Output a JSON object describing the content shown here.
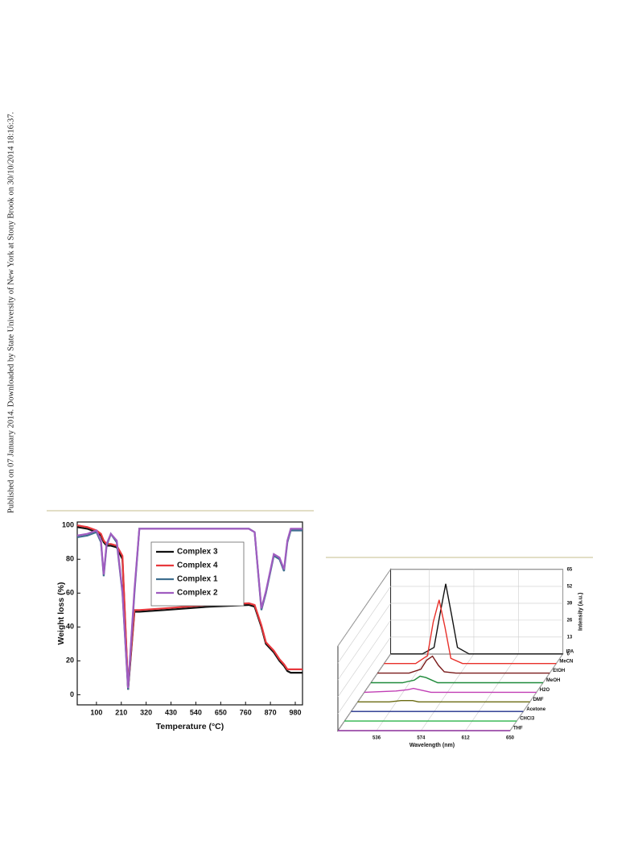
{
  "sidebar": "Published on 07 January 2014. Downloaded by State University of New York at Stony Brook on 30/10/2014 18:16:37.",
  "chart_data": [
    {
      "type": "line",
      "xlabel": "Temperature (°C)",
      "ylabel": "Weight loss (%)",
      "xlim": [
        15,
        1012
      ],
      "ylim": [
        -6,
        102
      ],
      "xticks": [
        100,
        210,
        320,
        430,
        540,
        650,
        760,
        870,
        980
      ],
      "yticks": [
        0,
        20,
        40,
        60,
        80,
        100
      ],
      "legend": "upper center",
      "x": [
        15,
        60,
        100,
        120,
        132,
        145,
        164,
        190,
        215,
        240,
        268,
        290,
        400,
        600,
        775,
        800,
        830,
        850,
        885,
        910,
        930,
        945,
        960,
        1012
      ],
      "series": [
        {
          "name": "Complex 3",
          "color": "#111111",
          "values": [
            99,
            98,
            96,
            94,
            90,
            88,
            88,
            87,
            80,
            3,
            49,
            49,
            50,
            52,
            53,
            52,
            40,
            30,
            25,
            20,
            17,
            14,
            13,
            13
          ]
        },
        {
          "name": "Complex 4",
          "color": "#e8383d",
          "values": [
            100,
            99,
            97,
            95,
            91,
            89,
            89,
            88,
            82,
            4,
            50,
            50,
            51,
            53,
            54,
            53,
            41,
            31,
            26,
            21,
            18,
            15,
            15,
            15
          ]
        },
        {
          "name": "Complex 1",
          "color": "#3f6f8f",
          "values": [
            93,
            94,
            96,
            90,
            70,
            88,
            95,
            90,
            60,
            3,
            60,
            98,
            98,
            98,
            98,
            96,
            50,
            60,
            82,
            80,
            73,
            90,
            97,
            97
          ]
        },
        {
          "name": "Complex 2",
          "color": "#a05cc0",
          "values": [
            94,
            95,
            97,
            91,
            71,
            89,
            95,
            91,
            61,
            4,
            62,
            98,
            98,
            98,
            98,
            96,
            51,
            61,
            83,
            81,
            74,
            91,
            98,
            98
          ]
        }
      ]
    },
    {
      "type": "waterfall",
      "xlabel": "Wavelength (nm)",
      "zlabel": "Intensity (a.u.)",
      "xlim": [
        503,
        650
      ],
      "zlim": [
        0,
        65
      ],
      "xticks": [
        536,
        574,
        612,
        650
      ],
      "zticks": [
        0,
        13,
        26,
        39,
        52,
        65
      ],
      "x": [
        503,
        530,
        540,
        545,
        550,
        555,
        560,
        570,
        600,
        650
      ],
      "series": [
        {
          "name": "THF",
          "color": "#8a2f9a",
          "values": [
            0,
            0,
            0,
            0,
            0,
            0,
            0,
            0,
            0,
            0
          ]
        },
        {
          "name": "CHCl3",
          "color": "#2bb34a",
          "values": [
            0,
            0,
            0,
            0,
            0,
            0,
            0,
            0,
            0,
            0
          ]
        },
        {
          "name": "Acetone",
          "color": "#1f2f8a",
          "values": [
            0,
            0,
            0,
            0,
            0,
            0,
            0,
            0,
            0,
            0
          ]
        },
        {
          "name": "DMF",
          "color": "#6b6b12",
          "values": [
            0,
            0,
            1,
            1,
            1,
            0,
            0,
            0,
            0,
            0
          ]
        },
        {
          "name": "H2O",
          "color": "#c13fb5",
          "values": [
            0,
            1,
            2,
            3,
            2,
            1,
            0,
            0,
            0,
            0
          ]
        },
        {
          "name": "MeOH",
          "color": "#1f8a3a",
          "values": [
            0,
            0,
            2,
            5,
            4,
            2,
            0,
            0,
            0,
            0
          ]
        },
        {
          "name": "EtOH",
          "color": "#7a1a1a",
          "values": [
            0,
            0,
            3,
            10,
            13,
            6,
            1,
            0,
            0,
            0
          ]
        },
        {
          "name": "MeCN",
          "color": "#e8302a",
          "values": [
            0,
            0,
            6,
            32,
            49,
            28,
            4,
            0,
            0,
            0
          ]
        },
        {
          "name": "IPA",
          "color": "#111111",
          "values": [
            0,
            0,
            5,
            30,
            54,
            30,
            5,
            0,
            0,
            0
          ]
        }
      ]
    }
  ]
}
